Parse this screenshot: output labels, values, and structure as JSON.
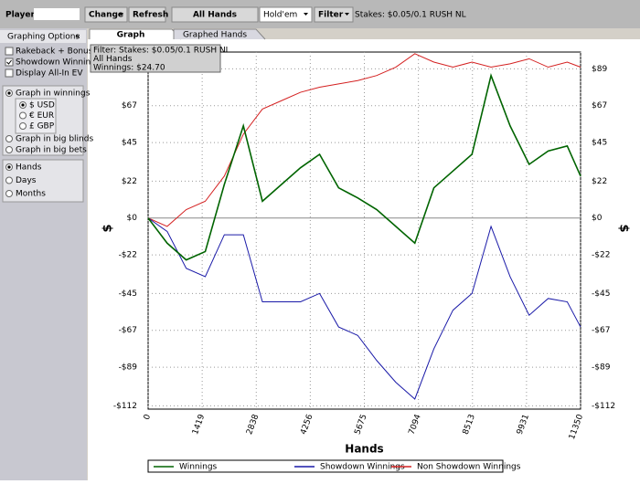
{
  "toolbar": {
    "player_label": "Player",
    "buttons": [
      "Change",
      "Refresh",
      "All Hands",
      "Hold'em",
      "Filter"
    ],
    "stakes": "Stakes: $0.05/0.1 RUSH NL"
  },
  "sidebar": {
    "title": "Graphing Options",
    "collapse": "«",
    "checkboxes": [
      {
        "label": "Rakeback + Bonuses",
        "checked": false
      },
      {
        "label": "Showdown Winnings",
        "checked": true
      },
      {
        "label": "Display All-In EV",
        "checked": false
      }
    ],
    "units": [
      {
        "label": "Graph in winnings",
        "checked": true
      },
      {
        "label": "Graph in big blinds",
        "checked": false
      },
      {
        "label": "Graph in big bets",
        "checked": false
      }
    ],
    "currencies": [
      {
        "label": "$ USD",
        "checked": true
      },
      {
        "label": "€ EUR",
        "checked": false
      },
      {
        "label": "£ GBP",
        "checked": false
      }
    ],
    "periods": [
      {
        "label": "Hands",
        "checked": true
      },
      {
        "label": "Days",
        "checked": false
      },
      {
        "label": "Months",
        "checked": false
      }
    ]
  },
  "tabs": [
    {
      "label": "Graph",
      "active": true
    },
    {
      "label": "Graphed Hands",
      "active": false
    }
  ],
  "chart_data": {
    "type": "line",
    "info": [
      "Filter: Stakes: $0.05/0.1 RUSH NL",
      "All Hands",
      "Winnings: $24.70"
    ],
    "xlabel": "Hands",
    "ylabel": "$",
    "x": [
      0,
      500,
      1000,
      1500,
      2000,
      2500,
      3000,
      3500,
      4000,
      4500,
      5000,
      5500,
      6000,
      6500,
      7000,
      7500,
      8000,
      8500,
      9000,
      9500,
      10000,
      10500,
      11000,
      11350
    ],
    "series": [
      {
        "name": "Winnings",
        "color": "#006400",
        "values": [
          0,
          -15,
          -25,
          -20,
          20,
          55,
          10,
          20,
          30,
          38,
          18,
          12,
          5,
          -5,
          -15,
          18,
          28,
          38,
          85,
          55,
          32,
          40,
          43,
          25
        ]
      },
      {
        "name": "Showdown Winnings",
        "color": "#1a1aa8",
        "values": [
          0,
          -8,
          -30,
          -35,
          -10,
          -10,
          -50,
          -50,
          -50,
          -45,
          -65,
          -70,
          -85,
          -98,
          -108,
          -78,
          -55,
          -45,
          -5,
          -35,
          -58,
          -48,
          -50,
          -65
        ]
      },
      {
        "name": "Non Showdown Winnings",
        "color": "#d42020",
        "values": [
          0,
          -5,
          5,
          10,
          25,
          50,
          65,
          70,
          75,
          78,
          80,
          82,
          85,
          90,
          98,
          93,
          90,
          93,
          90,
          92,
          95,
          90,
          93,
          90
        ]
      }
    ],
    "xlim": [
      0,
      11350
    ],
    "xticks": [
      0,
      1419,
      2838,
      4256,
      5675,
      7094,
      8513,
      9931,
      11350
    ],
    "ylim": [
      -114,
      99
    ],
    "yticks": [
      {
        "value": -112,
        "label": "-$112"
      },
      {
        "value": -89,
        "label": "-$89"
      },
      {
        "value": -67,
        "label": "-$67"
      },
      {
        "value": -45,
        "label": "-$45"
      },
      {
        "value": -22,
        "label": "-$22"
      },
      {
        "value": 0,
        "label": "$0"
      },
      {
        "value": 22,
        "label": "$22"
      },
      {
        "value": 45,
        "label": "$45"
      },
      {
        "value": 67,
        "label": "$67"
      },
      {
        "value": 89,
        "label": "$89"
      }
    ],
    "grid": true
  }
}
